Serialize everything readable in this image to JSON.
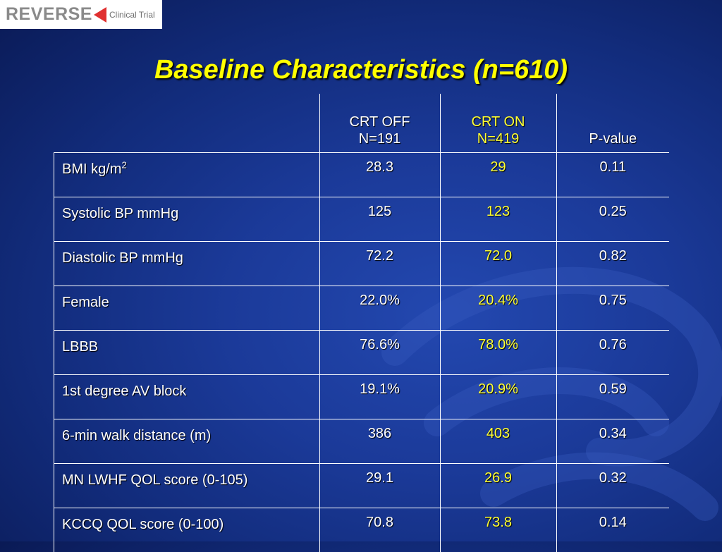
{
  "logo": {
    "word": "REVERSE",
    "subtitle": "Clinical Trial",
    "arrow_color": "#e03030"
  },
  "title": "Baseline Characteristics (n=610)",
  "colors": {
    "background": "#1b3a99",
    "title": "#ffff00",
    "crt_on": "#ffff33",
    "text": "#ffffff"
  },
  "table": {
    "headers": {
      "crt_off_line1": "CRT OFF",
      "crt_off_line2": "N=191",
      "crt_on_line1": "CRT ON",
      "crt_on_line2": "N=419",
      "pvalue": "P-value"
    },
    "rows": [
      {
        "label": "BMI kg/m",
        "label_sup": "2",
        "crt_off": "28.3",
        "crt_on": "29",
        "p": "0.11"
      },
      {
        "label": "Systolic BP mmHg",
        "crt_off": "125",
        "crt_on": "123",
        "p": "0.25"
      },
      {
        "label": "Diastolic BP mmHg",
        "crt_off": "72.2",
        "crt_on": "72.0",
        "p": "0.82"
      },
      {
        "label": "Female",
        "crt_off": "22.0%",
        "crt_on": "20.4%",
        "p": "0.75"
      },
      {
        "label": "LBBB",
        "crt_off": "76.6%",
        "crt_on": "78.0%",
        "p": "0.76"
      },
      {
        "label": "1st degree AV block",
        "crt_off": "19.1%",
        "crt_on": "20.9%",
        "p": "0.59"
      },
      {
        "label": "6-min walk distance (m)",
        "crt_off": "386",
        "crt_on": "403",
        "p": "0.34"
      },
      {
        "label": "MN LWHF QOL score (0-105)",
        "crt_off": "29.1",
        "crt_on": "26.9",
        "p": "0.32"
      },
      {
        "label": "KCCQ QOL score (0-100)",
        "crt_off": "70.8",
        "crt_on": "73.8",
        "p": "0.14"
      }
    ]
  }
}
